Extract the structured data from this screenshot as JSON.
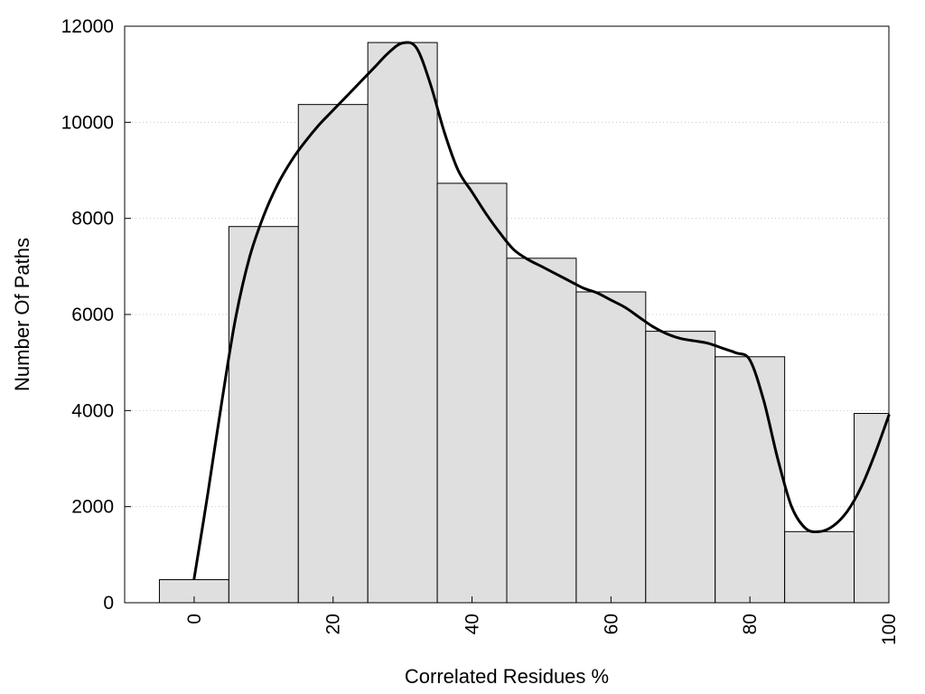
{
  "chart_data": {
    "type": "bar",
    "subtype": "histogram with smoothed density curve",
    "title": "",
    "xlabel": "Correlated Residues %",
    "ylabel": "Number Of Paths",
    "xlim": [
      -10,
      100
    ],
    "ylim": [
      0,
      12000
    ],
    "x_ticks": [
      0,
      20,
      40,
      60,
      80,
      100
    ],
    "y_ticks": [
      0,
      2000,
      4000,
      6000,
      8000,
      10000,
      12000
    ],
    "bin_width": 10,
    "categories": [
      0,
      10,
      20,
      30,
      40,
      50,
      60,
      70,
      80,
      90,
      100
    ],
    "values": [
      480,
      7830,
      10370,
      11660,
      8730,
      7170,
      6470,
      5650,
      5120,
      1480,
      3940
    ],
    "curve": {
      "x": [
        0,
        2,
        4,
        6,
        8,
        10,
        12,
        14,
        16,
        18,
        20,
        22,
        24,
        26,
        28,
        30,
        32,
        34,
        36,
        38,
        40,
        42,
        44,
        46,
        48,
        50,
        52,
        54,
        56,
        58,
        60,
        62,
        64,
        66,
        68,
        70,
        72,
        74,
        76,
        78,
        80,
        82,
        84,
        86,
        88,
        90,
        92,
        94,
        96,
        98,
        100
      ],
      "y": [
        500,
        2300,
        4200,
        5950,
        7200,
        8050,
        8700,
        9200,
        9600,
        9950,
        10250,
        10550,
        10850,
        11150,
        11450,
        11650,
        11550,
        10800,
        9800,
        9000,
        8550,
        8100,
        7700,
        7350,
        7150,
        7000,
        6850,
        6700,
        6550,
        6450,
        6300,
        6150,
        5950,
        5750,
        5600,
        5500,
        5450,
        5400,
        5300,
        5200,
        5050,
        4200,
        3000,
        2000,
        1550,
        1480,
        1600,
        1900,
        2400,
        3100,
        3900
      ]
    },
    "bar_color": "#dfdfdf",
    "bar_edge_color": "#000000",
    "curve_color": "#000000",
    "grid": "y-major-dotted",
    "legend": "none"
  }
}
